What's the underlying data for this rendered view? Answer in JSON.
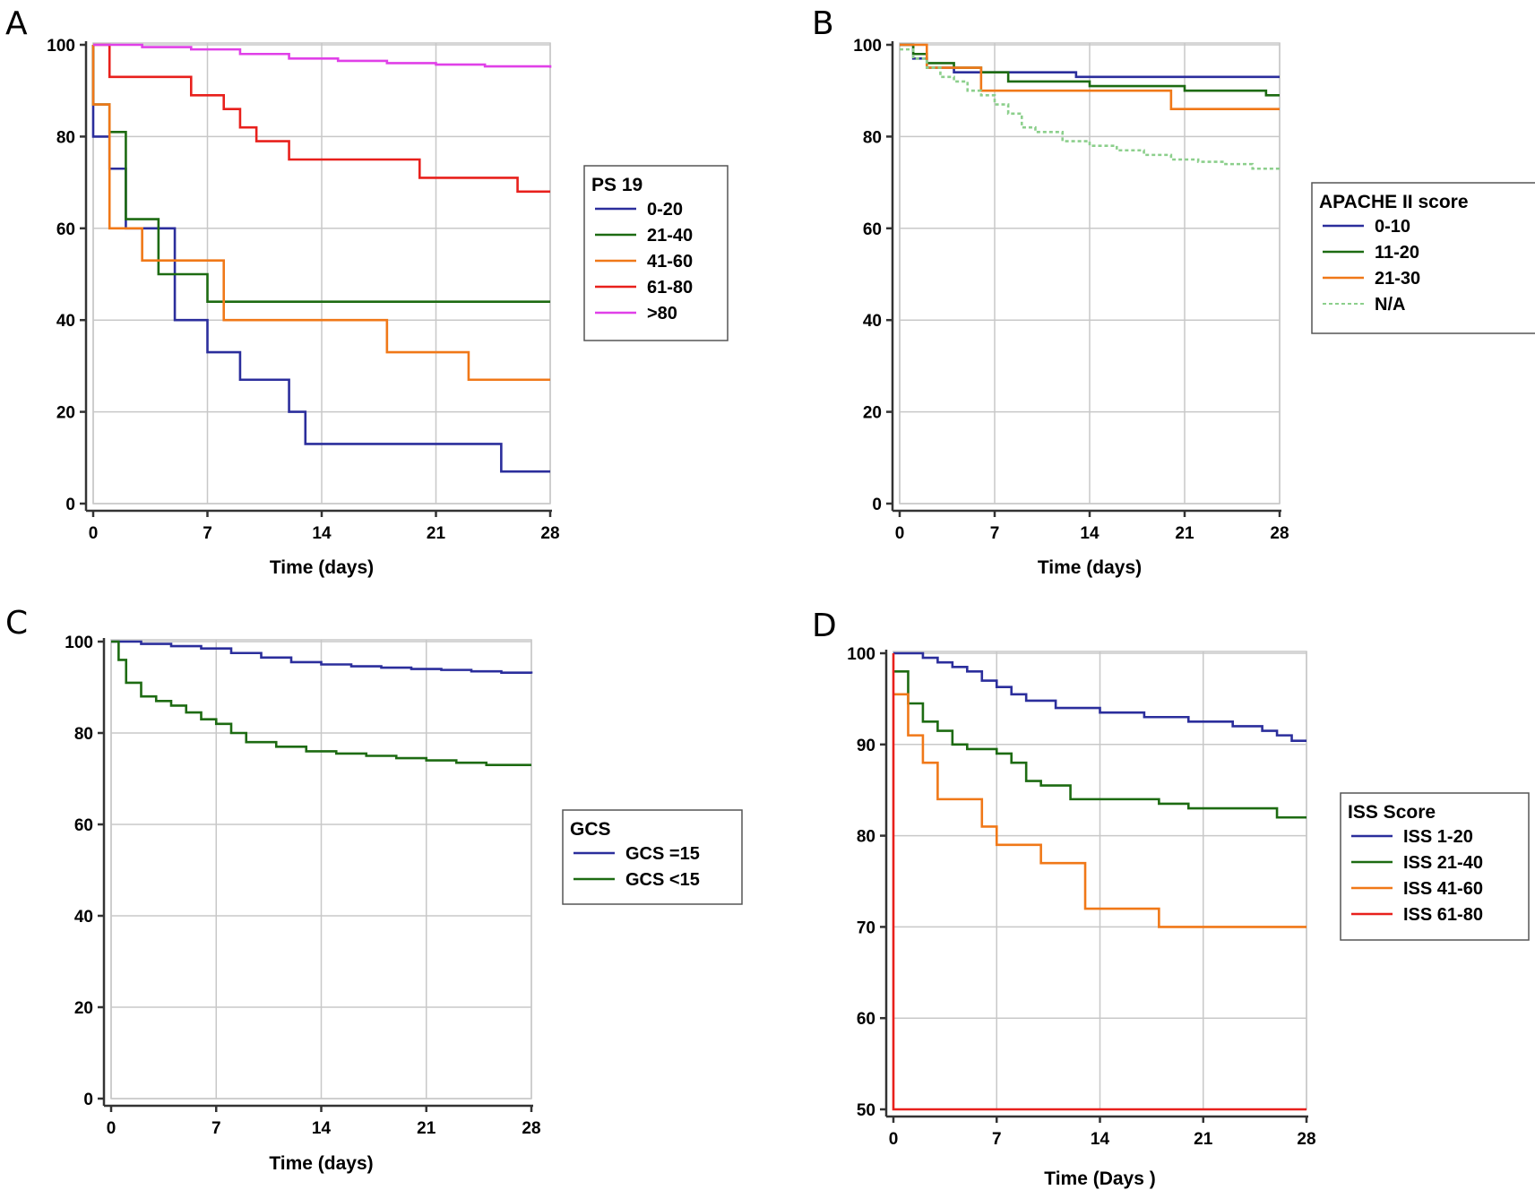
{
  "colors": {
    "blue": "#2b2e9c",
    "green": "#1d6b12",
    "orange": "#f07818",
    "red": "#e8201c",
    "magenta": "#e040e8",
    "na": "#8ccf8c"
  },
  "chart_data": [
    {
      "panel": "A",
      "type": "line",
      "step": true,
      "xlabel": "Time (days)",
      "ylabel": "",
      "xlim": [
        0,
        28
      ],
      "ylim": [
        0,
        100
      ],
      "xticks": [
        "0",
        "7",
        "14",
        "21",
        "28"
      ],
      "yticks": [
        "0",
        "20",
        "40",
        "60",
        "80",
        "100"
      ],
      "grid": true,
      "legend": {
        "title": "PS 19",
        "placement": "right-middle"
      },
      "series": [
        {
          "name": "0-20",
          "color": "blue",
          "x": [
            0,
            0,
            1,
            2,
            5,
            7,
            9,
            12,
            13,
            25,
            28
          ],
          "y": [
            100,
            80,
            73,
            60,
            40,
            33,
            27,
            20,
            13,
            7,
            7
          ]
        },
        {
          "name": "21-40",
          "color": "green",
          "x": [
            0,
            0,
            1,
            2,
            4,
            7,
            28
          ],
          "y": [
            100,
            87,
            81,
            62,
            50,
            44,
            44
          ]
        },
        {
          "name": "41-60",
          "color": "orange",
          "x": [
            0,
            0,
            1,
            3,
            8,
            18,
            23,
            28
          ],
          "y": [
            100,
            87,
            60,
            53,
            40,
            33,
            27,
            27
          ]
        },
        {
          "name": "61-80",
          "color": "red",
          "x": [
            0,
            1,
            6,
            8,
            9,
            10,
            12,
            20,
            26,
            28
          ],
          "y": [
            100,
            93,
            89,
            86,
            82,
            79,
            75,
            71,
            68,
            68
          ]
        },
        {
          "name": ">80",
          "color": "magenta",
          "x": [
            0,
            3,
            6,
            9,
            12,
            15,
            18,
            21,
            24,
            28
          ],
          "y": [
            100,
            99.5,
            99,
            98,
            97,
            96.5,
            96,
            95.7,
            95.3,
            95
          ]
        }
      ]
    },
    {
      "panel": "B",
      "type": "line",
      "step": true,
      "xlabel": "Time (days)",
      "ylabel": "",
      "xlim": [
        0,
        28
      ],
      "ylim": [
        0,
        100
      ],
      "xticks": [
        "0",
        "7",
        "14",
        "21",
        "28"
      ],
      "yticks": [
        "0",
        "20",
        "40",
        "60",
        "80",
        "100"
      ],
      "grid": true,
      "legend": {
        "title": "APACHE II score",
        "placement": "right-middle"
      },
      "series": [
        {
          "name": "0-10",
          "color": "blue",
          "x": [
            0,
            1,
            2,
            4,
            6,
            13,
            28
          ],
          "y": [
            100,
            97,
            95,
            94,
            94,
            93,
            93
          ]
        },
        {
          "name": "11-20",
          "color": "green",
          "x": [
            0,
            1,
            2,
            4,
            6,
            8,
            14,
            21,
            27,
            28
          ],
          "y": [
            100,
            98,
            96,
            95,
            94,
            92,
            91,
            90,
            89,
            89
          ]
        },
        {
          "name": "21-30",
          "color": "orange",
          "x": [
            0,
            2,
            3,
            6,
            20,
            28
          ],
          "y": [
            100,
            95,
            95,
            90,
            86,
            86
          ]
        },
        {
          "name": "N/A",
          "color": "na",
          "dashed": true,
          "x": [
            0,
            1,
            2,
            3,
            4,
            5,
            6,
            7,
            8,
            9,
            10,
            12,
            14,
            16,
            18,
            20,
            22,
            24,
            26,
            28
          ],
          "y": [
            99,
            97,
            95,
            93,
            92,
            90,
            89,
            87,
            85,
            82,
            81,
            79,
            78,
            77,
            76,
            75,
            74.5,
            74,
            73,
            72.5
          ]
        }
      ]
    },
    {
      "panel": "C",
      "type": "line",
      "step": true,
      "xlabel": "Time (days)",
      "ylabel": "",
      "xlim": [
        0,
        28
      ],
      "ylim": [
        0,
        100
      ],
      "xticks": [
        "0",
        "7",
        "14",
        "21",
        "28"
      ],
      "yticks": [
        "0",
        "20",
        "40",
        "60",
        "80",
        "100"
      ],
      "grid": true,
      "legend": {
        "title": "GCS",
        "placement": "right-middle"
      },
      "series": [
        {
          "name": "GCS =15",
          "color": "blue",
          "x": [
            0,
            2,
            4,
            6,
            8,
            10,
            12,
            14,
            16,
            18,
            20,
            22,
            24,
            26,
            28
          ],
          "y": [
            100,
            99.5,
            99,
            98.5,
            97.5,
            96.5,
            95.5,
            95,
            94.6,
            94.3,
            94,
            93.8,
            93.5,
            93.2,
            93
          ]
        },
        {
          "name": "GCS <15",
          "color": "green",
          "x": [
            0,
            0.5,
            1,
            2,
            3,
            4,
            5,
            6,
            7,
            8,
            9,
            11,
            13,
            15,
            17,
            19,
            21,
            23,
            25,
            28
          ],
          "y": [
            100,
            96,
            91,
            88,
            87,
            86,
            84.5,
            83,
            82,
            80,
            78,
            77,
            76,
            75.5,
            75,
            74.5,
            74,
            73.5,
            73,
            73
          ]
        }
      ]
    },
    {
      "panel": "D",
      "type": "line",
      "step": true,
      "xlabel": "Time (Days )",
      "ylabel": "",
      "xlim": [
        0,
        28
      ],
      "ylim": [
        50,
        100
      ],
      "xticks": [
        "0",
        "7",
        "14",
        "21",
        "28"
      ],
      "yticks": [
        "50",
        "60",
        "70",
        "80",
        "90",
        "100"
      ],
      "grid": true,
      "legend": {
        "title": "ISS Score",
        "placement": "right-middle"
      },
      "series": [
        {
          "name": "ISS 1-20",
          "color": "blue",
          "x": [
            0,
            2,
            3,
            4,
            5,
            6,
            7,
            8,
            9,
            11,
            14,
            17,
            20,
            23,
            25,
            26,
            27,
            28
          ],
          "y": [
            100,
            99.5,
            99,
            98.5,
            98,
            97,
            96.3,
            95.5,
            94.8,
            94,
            93.5,
            93,
            92.5,
            92,
            91.5,
            91,
            90.4,
            90.4
          ]
        },
        {
          "name": "ISS 21-40",
          "color": "green",
          "x": [
            0,
            1,
            2,
            3,
            4,
            5,
            7,
            8,
            9,
            10,
            12,
            18,
            20,
            26,
            28
          ],
          "y": [
            98,
            94.5,
            92.5,
            91.5,
            90,
            89.5,
            89,
            88,
            86,
            85.5,
            84,
            83.5,
            83,
            82,
            82
          ]
        },
        {
          "name": "ISS 41-60",
          "color": "orange",
          "x": [
            0,
            1,
            2,
            3,
            6,
            7,
            10,
            13,
            18,
            28
          ],
          "y": [
            95.5,
            91,
            88,
            84,
            81,
            79,
            77,
            72,
            70,
            70
          ]
        },
        {
          "name": "ISS 61-80",
          "color": "red",
          "x": [
            0,
            0,
            28
          ],
          "y": [
            100,
            50,
            50
          ]
        }
      ]
    }
  ]
}
